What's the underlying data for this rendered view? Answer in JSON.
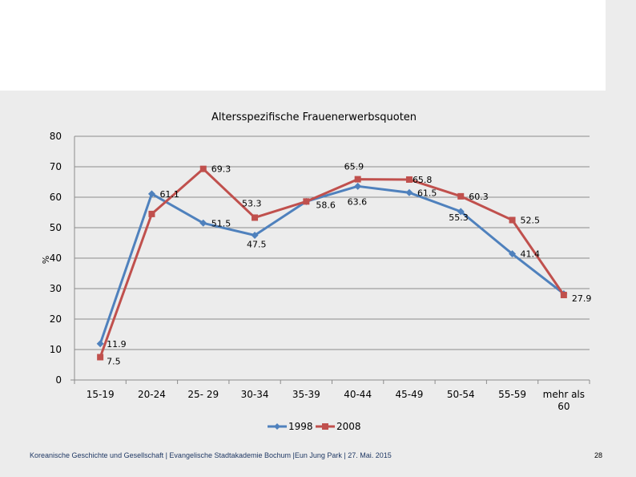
{
  "chart_data": {
    "type": "line",
    "title": "Altersspezifische  Frauenerwerbsquoten",
    "xlabel": "",
    "ylabel": "%",
    "ylim": [
      0,
      80
    ],
    "yticks": [
      0,
      10,
      20,
      30,
      40,
      50,
      60,
      70,
      80
    ],
    "grid": true,
    "legend_position": "bottom",
    "categories": [
      "15-19",
      "20-24",
      "25- 29",
      "30-34",
      "35-39",
      "40-44",
      "45-49",
      "50-54",
      "55-59",
      "mehr als 60"
    ],
    "series": [
      {
        "name": "1998",
        "color": "#4f81bd",
        "marker": "diamond",
        "values": [
          11.9,
          61.1,
          51.5,
          47.5,
          58.6,
          63.6,
          61.5,
          55.3,
          41.4,
          28.3
        ],
        "labels": [
          "11.9",
          "61.1",
          "51.5",
          "47.5",
          "58.6",
          "63.6",
          "61.5",
          "55.3",
          "41.4",
          ""
        ]
      },
      {
        "name": "2008",
        "color": "#c0504d",
        "marker": "square",
        "values": [
          7.5,
          54.5,
          69.3,
          53.3,
          58.6,
          65.9,
          65.8,
          60.3,
          52.5,
          27.9
        ],
        "labels": [
          "7.5",
          "",
          "69.3",
          "53.3",
          "",
          "65.9",
          "65.8",
          "60.3",
          "52.5",
          "27.9"
        ]
      }
    ]
  },
  "footer": {
    "text": "Koreanische Geschichte und Gesellschaft | Evangelische Stadtakademie Bochum |Eun Jung Park | 27. Mai. 2015",
    "page_number": "28"
  }
}
